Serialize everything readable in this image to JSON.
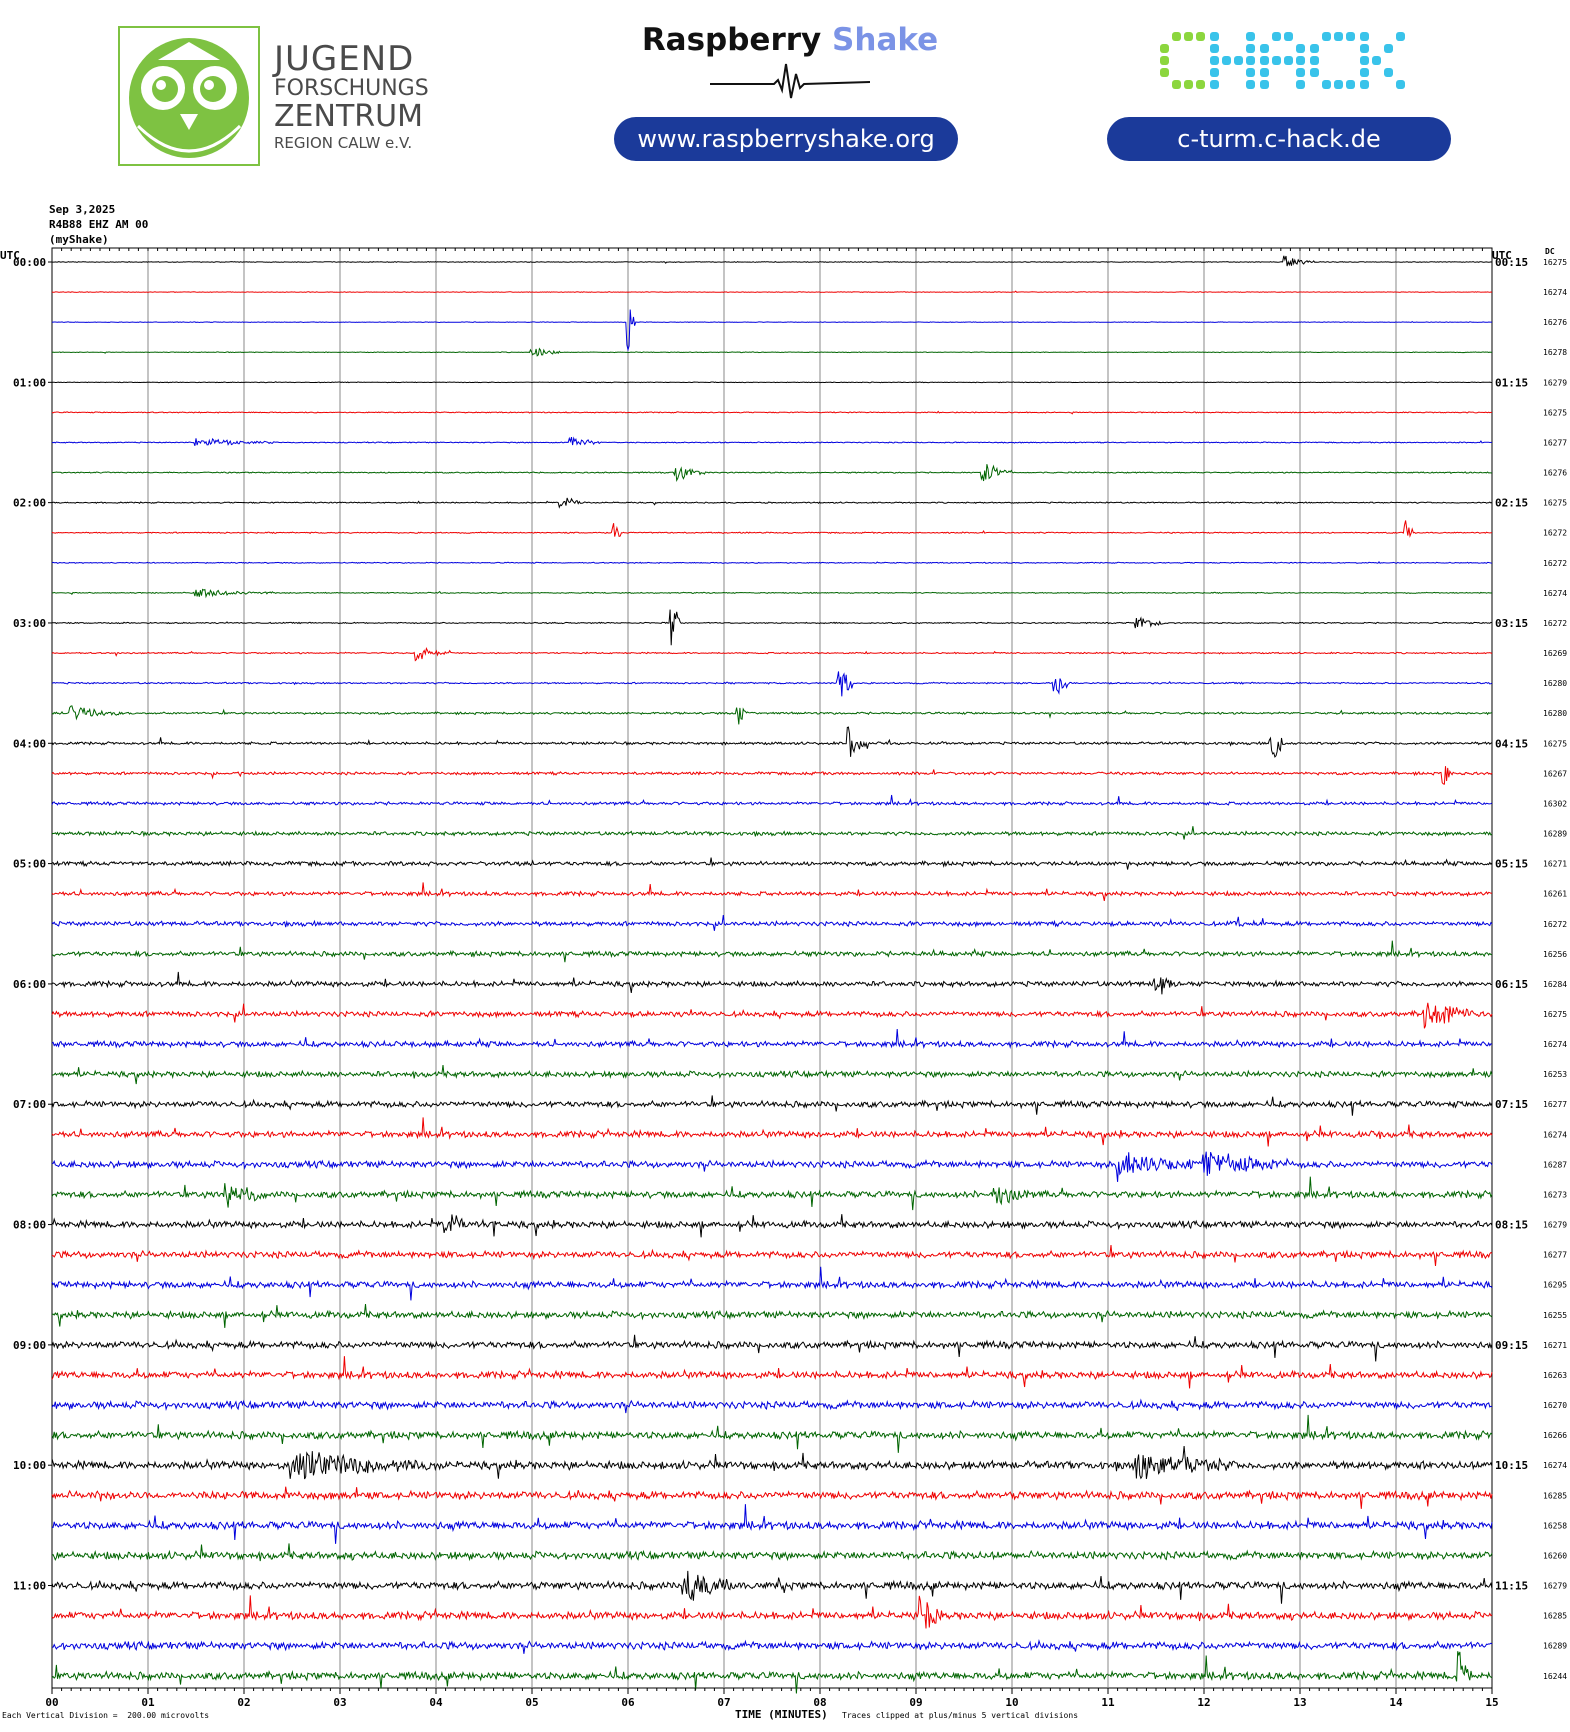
{
  "header": {
    "jfz": {
      "line1": "JUGEND",
      "line2": "FORSCHUNGS",
      "line3": "ZENTRUM",
      "line4": "REGION CALW e.V."
    },
    "raspberry_shake": {
      "name_dark": "Raspberry",
      "name_light": "Shake",
      "url": "www.raspberryshake.org"
    },
    "chack": {
      "logo_text": "CHACK",
      "url": "c-turm.c-hack.de"
    }
  },
  "meta": {
    "date": "Sep 3,2025",
    "station": "R4B88 EHZ AM 00",
    "source": "(myShake)",
    "utc_left": "UTC",
    "utc_right": "UTC",
    "dc_label": "DC"
  },
  "footer": {
    "left": "Each Vertical Division =  200.00 microvolts",
    "center": "TIME (MINUTES)",
    "right": "Traces clipped at plus/minus 5 vertical divisions"
  },
  "colors": {
    "cycle": [
      "#000000",
      "#ee0000",
      "#0000dd",
      "#006400"
    ],
    "grid": "#888888",
    "chack_green": "#8cd63e",
    "chack_blue": "#39c3ea",
    "pill": "#1b3a9a",
    "jfz_green": "#7ec242"
  },
  "chart_data": {
    "type": "line",
    "title": "",
    "xlabel": "TIME (MINUTES)",
    "x_ticks": [
      "00",
      "01",
      "02",
      "03",
      "04",
      "05",
      "06",
      "07",
      "08",
      "09",
      "10",
      "11",
      "12",
      "13",
      "14",
      "15"
    ],
    "xlim": [
      0,
      15
    ],
    "rows": 48,
    "row_minutes": 15,
    "left_labels": [
      "00:00",
      "01:00",
      "02:00",
      "03:00",
      "04:00",
      "05:00",
      "06:00",
      "07:00",
      "08:00",
      "09:00",
      "10:00",
      "11:00"
    ],
    "right_labels": [
      "00:15",
      "01:15",
      "02:15",
      "03:15",
      "04:15",
      "05:15",
      "06:15",
      "07:15",
      "08:15",
      "09:15",
      "10:15",
      "11:15"
    ],
    "dc_values": [
      16275,
      16274,
      16276,
      16278,
      16279,
      16275,
      16277,
      16276,
      16275,
      16272,
      16272,
      16274,
      16272,
      16269,
      16280,
      16280,
      16275,
      16267,
      16302,
      16289,
      16271,
      16261,
      16272,
      16256,
      16284,
      16275,
      16274,
      16253,
      16277,
      16274,
      16287,
      16273,
      16279,
      16277,
      16295,
      16255,
      16271,
      16263,
      16270,
      16266,
      16274,
      16285,
      16258,
      16260,
      16279,
      16285,
      16289,
      16244
    ],
    "noise_level": [
      0.4,
      0.35,
      0.35,
      0.4,
      0.4,
      0.6,
      0.6,
      0.7,
      0.7,
      0.7,
      0.6,
      0.6,
      0.7,
      0.8,
      0.9,
      1.2,
      1.5,
      1.6,
      1.8,
      2.2,
      2.4,
      2.4,
      2.6,
      2.8,
      3.0,
      3.1,
      3.2,
      3.3,
      3.5,
      3.6,
      3.8,
      3.8,
      3.8,
      3.8,
      3.8,
      3.9,
      4.0,
      4.0,
      4.2,
      4.3,
      4.5,
      4.5,
      4.5,
      4.4,
      4.4,
      4.3,
      4.3,
      4.3
    ],
    "events": [
      {
        "row": 0,
        "minute": 12.85,
        "amplitude": 1.2,
        "duration": 0.3
      },
      {
        "row": 2,
        "minute": 6.0,
        "amplitude": 5,
        "duration": 0.08
      },
      {
        "row": 3,
        "minute": 5.0,
        "amplitude": 1.2,
        "duration": 0.3
      },
      {
        "row": 6,
        "minute": 1.5,
        "amplitude": 0.8,
        "duration": 0.8
      },
      {
        "row": 6,
        "minute": 5.4,
        "amplitude": 1.6,
        "duration": 0.3
      },
      {
        "row": 7,
        "minute": 6.5,
        "amplitude": 1.8,
        "duration": 0.3
      },
      {
        "row": 7,
        "minute": 9.7,
        "amplitude": 2.0,
        "duration": 0.3
      },
      {
        "row": 8,
        "minute": 5.3,
        "amplitude": 1.4,
        "duration": 0.3
      },
      {
        "row": 9,
        "minute": 5.85,
        "amplitude": 2.5,
        "duration": 0.08
      },
      {
        "row": 9,
        "minute": 14.1,
        "amplitude": 2.5,
        "duration": 0.08
      },
      {
        "row": 11,
        "minute": 1.5,
        "amplitude": 0.8,
        "duration": 0.8
      },
      {
        "row": 12,
        "minute": 6.45,
        "amplitude": 5,
        "duration": 0.1
      },
      {
        "row": 12,
        "minute": 11.3,
        "amplitude": 1.4,
        "duration": 0.3
      },
      {
        "row": 13,
        "minute": 3.8,
        "amplitude": 1.3,
        "duration": 0.3
      },
      {
        "row": 14,
        "minute": 8.2,
        "amplitude": 4,
        "duration": 0.15
      },
      {
        "row": 14,
        "minute": 10.45,
        "amplitude": 3,
        "duration": 0.15
      },
      {
        "row": 15,
        "minute": 0.2,
        "amplitude": 1.8,
        "duration": 0.5
      },
      {
        "row": 15,
        "minute": 7.15,
        "amplitude": 2.5,
        "duration": 0.1
      },
      {
        "row": 16,
        "minute": 8.3,
        "amplitude": 4,
        "duration": 0.2
      },
      {
        "row": 16,
        "minute": 12.7,
        "amplitude": 5,
        "duration": 0.15
      },
      {
        "row": 17,
        "minute": 14.5,
        "amplitude": 3,
        "duration": 0.1
      },
      {
        "row": 24,
        "minute": 11.5,
        "amplitude": 3,
        "duration": 0.2
      },
      {
        "row": 25,
        "minute": 14.3,
        "amplitude": 3,
        "duration": 0.5
      },
      {
        "row": 30,
        "minute": 11.1,
        "amplitude": 2.5,
        "duration": 0.8
      },
      {
        "row": 30,
        "minute": 12.0,
        "amplitude": 2.5,
        "duration": 0.8
      },
      {
        "row": 31,
        "minute": 1.8,
        "amplitude": 2.5,
        "duration": 0.4
      },
      {
        "row": 31,
        "minute": 9.8,
        "amplitude": 2.2,
        "duration": 0.4
      },
      {
        "row": 32,
        "minute": 4.1,
        "amplitude": 2.2,
        "duration": 0.4
      },
      {
        "row": 40,
        "minute": 2.5,
        "amplitude": 2.5,
        "duration": 1.5
      },
      {
        "row": 40,
        "minute": 11.3,
        "amplitude": 2.5,
        "duration": 1.0
      },
      {
        "row": 44,
        "minute": 6.6,
        "amplitude": 3,
        "duration": 0.5
      },
      {
        "row": 45,
        "minute": 9.05,
        "amplitude": 5,
        "duration": 0.2
      },
      {
        "row": 47,
        "minute": 14.65,
        "amplitude": 5,
        "duration": 0.15
      }
    ]
  }
}
